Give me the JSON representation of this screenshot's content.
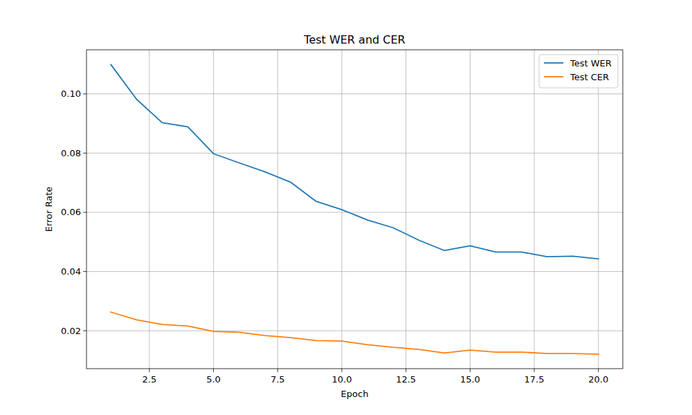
{
  "chart_data": {
    "type": "line",
    "title": "Test WER and CER",
    "x_label": "Epoch",
    "y_label": "Error Rate",
    "x": [
      1,
      2,
      3,
      4,
      5,
      6,
      7,
      8,
      9,
      10,
      11,
      12,
      13,
      14,
      15,
      16,
      17,
      18,
      19,
      20
    ],
    "series": [
      {
        "name": "Test WER",
        "color": "#1f77b4",
        "values": [
          0.1099,
          0.0982,
          0.0903,
          0.0889,
          0.0798,
          0.0767,
          0.0737,
          0.0702,
          0.0637,
          0.0609,
          0.0574,
          0.0548,
          0.0506,
          0.0471,
          0.0487,
          0.0466,
          0.0466,
          0.045,
          0.0452,
          0.0443
        ]
      },
      {
        "name": "Test CER",
        "color": "#ff7f0e",
        "values": [
          0.0263,
          0.0237,
          0.0221,
          0.0216,
          0.0198,
          0.0195,
          0.0184,
          0.0177,
          0.0167,
          0.0165,
          0.0153,
          0.0144,
          0.0137,
          0.0125,
          0.0135,
          0.0128,
          0.0128,
          0.0123,
          0.0123,
          0.0121
        ]
      }
    ],
    "xlim": [
      0.05,
      20.95
    ],
    "xticks": [
      2.5,
      {
        "value": 5,
        "label": "5.0"
      },
      7.5,
      {
        "value": 10,
        "label": "10.0"
      },
      12.5,
      {
        "value": 15,
        "label": "15.0"
      },
      17.5,
      {
        "value": 20,
        "label": "20.0"
      }
    ],
    "ylim": [
      0.0072,
      0.1149
    ],
    "yticks": [
      0.02,
      0.04,
      0.06,
      0.08,
      {
        "value": 0.1,
        "label": "0.10"
      }
    ],
    "grid": true,
    "legend": "upper right"
  }
}
